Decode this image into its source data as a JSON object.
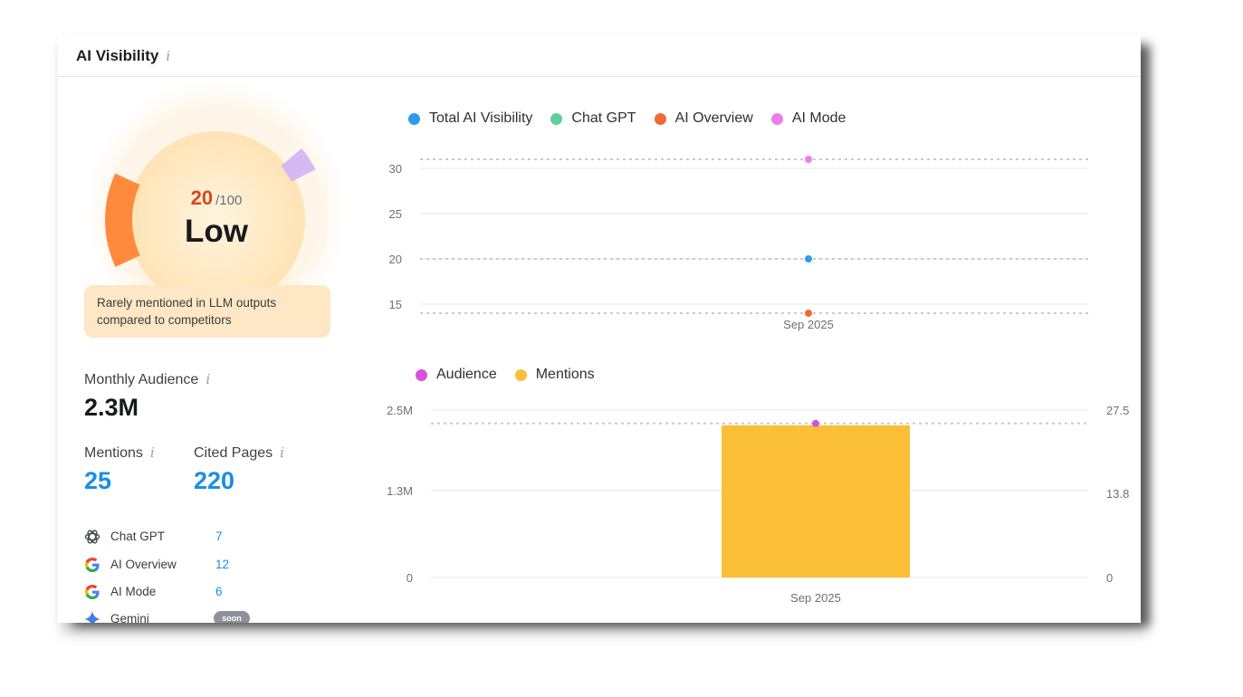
{
  "card": {
    "title": "AI Visibility",
    "info_glyph": "i"
  },
  "score": {
    "value": "20",
    "max": "/100",
    "level": "Low",
    "value_fraction": 0.2,
    "note": "Rarely mentioned in LLM outputs compared to competitors"
  },
  "colors": {
    "score_accent": "#d8461d",
    "metric_blue": "#1a8ee6",
    "gauge_orange": "#ff8a3d",
    "gauge_purple": "#d6b8f5",
    "note_bg": "#fde7c4"
  },
  "metrics": {
    "monthly_audience": {
      "label": "Monthly Audience",
      "value": "2.3M"
    },
    "mentions": {
      "label": "Mentions",
      "value": "25"
    },
    "cited_pages": {
      "label": "Cited Pages",
      "value": "220"
    }
  },
  "sources": [
    {
      "name": "Chat GPT",
      "count": "7",
      "icon": "chatgpt-icon"
    },
    {
      "name": "AI Overview",
      "count": "12",
      "icon": "google-icon"
    },
    {
      "name": "AI Mode",
      "count": "6",
      "icon": "google-icon"
    },
    {
      "name": "Gemini",
      "badge": "soon",
      "icon": "gemini-icon"
    }
  ],
  "chart_data": [
    {
      "type": "scatter",
      "legend": [
        {
          "name": "Total AI Visibility",
          "color": "#2d9bf0"
        },
        {
          "name": "Chat GPT",
          "color": "#5fcf9b"
        },
        {
          "name": "AI Overview",
          "color": "#f06a35"
        },
        {
          "name": "AI Mode",
          "color": "#ef7cef"
        }
      ],
      "x": [
        "Sep 2025"
      ],
      "series": [
        {
          "name": "Total AI Visibility",
          "color": "#2d9bf0",
          "values": [
            20
          ]
        },
        {
          "name": "AI Overview",
          "color": "#f06a35",
          "values": [
            14
          ]
        },
        {
          "name": "AI Mode",
          "color": "#ef7cef",
          "values": [
            31
          ]
        }
      ],
      "yticks": [
        15,
        20,
        25,
        30
      ],
      "ytick_labels": [
        "15",
        "20",
        "25",
        "30"
      ],
      "ylim": [
        13.5,
        32
      ],
      "grid": true,
      "legend_position": "top-left"
    },
    {
      "type": "bar",
      "legend": [
        {
          "name": "Audience",
          "color": "#d552dc"
        },
        {
          "name": "Mentions",
          "color": "#fbbf38"
        }
      ],
      "categories": [
        "Sep 2025"
      ],
      "series": [
        {
          "name": "Mentions",
          "type": "bar",
          "axis": "right",
          "color": "#fbbf38",
          "values": [
            25
          ]
        },
        {
          "name": "Audience",
          "type": "line",
          "axis": "left",
          "color": "#d552dc",
          "values": [
            2300000
          ]
        }
      ],
      "left_axis": {
        "ticks": [
          0,
          1300000,
          2500000
        ],
        "labels": [
          "0",
          "1.3M",
          "2.5M"
        ],
        "ylim": [
          0,
          2500000
        ]
      },
      "right_axis": {
        "ticks": [
          0,
          13.8,
          27.5
        ],
        "labels": [
          "0",
          "13.8",
          "27.5"
        ],
        "ylim": [
          0,
          27.5
        ]
      },
      "grid": true,
      "legend_position": "top-left"
    }
  ]
}
